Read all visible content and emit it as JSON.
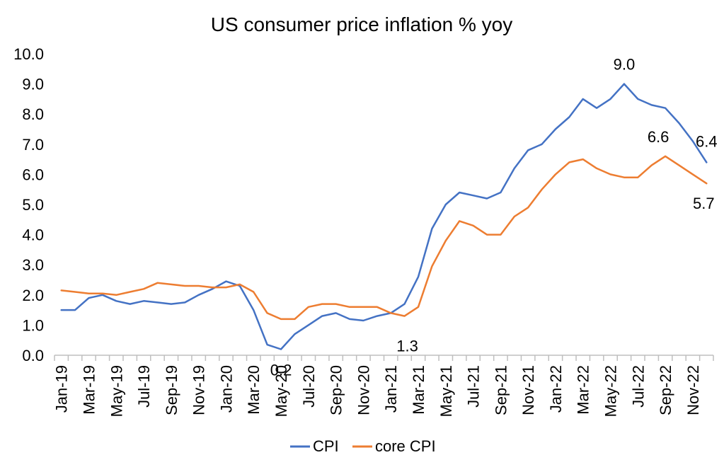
{
  "chart_data": {
    "type": "line",
    "title": "US consumer price inflation % yoy",
    "xlabel": "",
    "ylabel": "",
    "ylim": [
      0,
      10
    ],
    "yticks": [
      "0.0",
      "1.0",
      "2.0",
      "3.0",
      "4.0",
      "5.0",
      "6.0",
      "7.0",
      "8.0",
      "9.0",
      "10.0"
    ],
    "x": [
      "Jan-19",
      "Feb-19",
      "Mar-19",
      "Apr-19",
      "May-19",
      "Jun-19",
      "Jul-19",
      "Aug-19",
      "Sep-19",
      "Oct-19",
      "Nov-19",
      "Dec-19",
      "Jan-20",
      "Feb-20",
      "Mar-20",
      "Apr-20",
      "May-20",
      "Jun-20",
      "Jul-20",
      "Aug-20",
      "Sep-20",
      "Oct-20",
      "Nov-20",
      "Dec-20",
      "Jan-21",
      "Feb-21",
      "Mar-21",
      "Apr-21",
      "May-21",
      "Jun-21",
      "Jul-21",
      "Aug-21",
      "Sep-21",
      "Oct-21",
      "Nov-21",
      "Dec-21",
      "Jan-22",
      "Feb-22",
      "Mar-22",
      "Apr-22",
      "May-22",
      "Jun-22",
      "Jul-22",
      "Aug-22",
      "Sep-22",
      "Oct-22",
      "Nov-22",
      "Dec-22"
    ],
    "xtick_labels": [
      "Jan-19",
      "Mar-19",
      "May-19",
      "Jul-19",
      "Sep-19",
      "Nov-19",
      "Jan-20",
      "Mar-20",
      "May-20",
      "Jul-20",
      "Sep-20",
      "Nov-20",
      "Jan-21",
      "Mar-21",
      "May-21",
      "Jul-21",
      "Sep-21",
      "Nov-21",
      "Jan-22",
      "Mar-22",
      "May-22",
      "Jul-22",
      "Sep-22",
      "Nov-22"
    ],
    "series": [
      {
        "name": "CPI",
        "color": "#4472C4",
        "values": [
          1.5,
          1.5,
          1.9,
          2.0,
          1.8,
          1.7,
          1.8,
          1.75,
          1.7,
          1.75,
          2.0,
          2.2,
          2.45,
          2.3,
          1.5,
          0.35,
          0.2,
          0.7,
          1.0,
          1.3,
          1.4,
          1.2,
          1.15,
          1.3,
          1.4,
          1.7,
          2.6,
          4.2,
          5.0,
          5.4,
          5.3,
          5.2,
          5.4,
          6.2,
          6.8,
          7.0,
          7.5,
          7.9,
          8.5,
          8.2,
          8.5,
          9.0,
          8.5,
          8.3,
          8.2,
          7.7,
          7.1,
          6.4
        ]
      },
      {
        "name": "core CPI",
        "color": "#ED7D31",
        "values": [
          2.15,
          2.1,
          2.05,
          2.05,
          2.0,
          2.1,
          2.2,
          2.4,
          2.35,
          2.3,
          2.3,
          2.25,
          2.25,
          2.35,
          2.1,
          1.4,
          1.2,
          1.2,
          1.6,
          1.7,
          1.7,
          1.6,
          1.6,
          1.6,
          1.4,
          1.3,
          1.6,
          2.95,
          3.8,
          4.45,
          4.3,
          4.0,
          4.0,
          4.6,
          4.9,
          5.5,
          6.0,
          6.4,
          6.5,
          6.2,
          6.0,
          5.9,
          5.9,
          6.3,
          6.6,
          6.3,
          6.0,
          5.7
        ]
      }
    ],
    "annotations": [
      {
        "text": "9.0",
        "series": 0,
        "index": 41
      },
      {
        "text": "6.4",
        "series": 0,
        "index": 47
      },
      {
        "text": "6.6",
        "series": 1,
        "index": 44
      },
      {
        "text": "5.7",
        "series": 1,
        "index": 47
      },
      {
        "text": "0.2",
        "series": 0,
        "index": 16
      },
      {
        "text": "1.3",
        "series": 1,
        "index": 25
      }
    ],
    "grid": false,
    "legend": "bottom"
  }
}
